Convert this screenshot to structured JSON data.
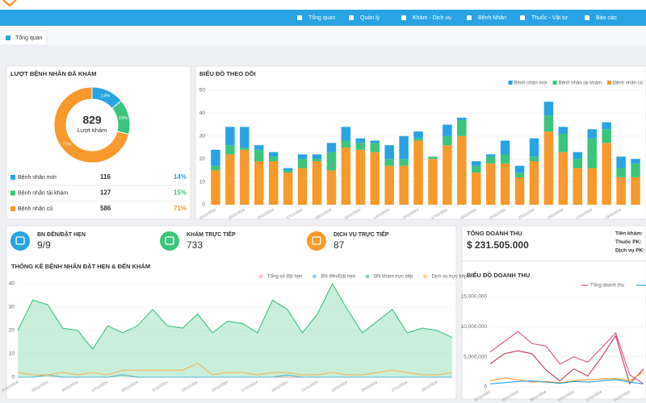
{
  "nav": {
    "items": [
      "Tổng quan",
      "Quản lý",
      "Khám - Dịch vụ",
      "Bệnh Nhân",
      "Thuốc - Vật tư",
      "Báo cáo"
    ]
  },
  "tab": "Tổng quan",
  "visits": {
    "type": "pie",
    "title": "LƯỢT BỆNH NHÂN ĐÃ KHÁM",
    "total": 829,
    "total_label": "Lượt khám",
    "categories": [
      "Bệnh nhân mới",
      "Bệnh nhân tái khám",
      "Bệnh nhân cũ"
    ],
    "colors": [
      "#29a3e3",
      "#3cc47c",
      "#f7992c"
    ],
    "values": [
      14,
      15,
      71
    ],
    "value_labels": [
      "14%",
      "15%",
      "71%"
    ],
    "counts": [
      116,
      127,
      586
    ]
  },
  "tracking": {
    "type": "bar",
    "stacked": true,
    "title": "BIỂU ĐỒ THEO DÕI",
    "categories": [
      "01/11/2024",
      null,
      "03/11/2024",
      null,
      "05/11/2024",
      null,
      "07/11/2024",
      null,
      "09/11/2024",
      null,
      "11/11/2024",
      null,
      "13/11/2024",
      null,
      "15/11/2024",
      null,
      "17/11/2024",
      null,
      "19/11/2024",
      null,
      "21/11/2024",
      null,
      "23/11/2024",
      null,
      "25/11/2024",
      null,
      "27/11/2024",
      null,
      "29/11/2024",
      null
    ],
    "series": [
      {
        "name": "Bệnh nhân mới",
        "color": "#29a3e3",
        "values": [
          7,
          8,
          9,
          2,
          2,
          1,
          2,
          2,
          4,
          6,
          2,
          1,
          6,
          10,
          3,
          0,
          5,
          1,
          2,
          1,
          6,
          3,
          8,
          6,
          3,
          3,
          4,
          3,
          5,
          2
        ]
      },
      {
        "name": "Bệnh nhân tái khám",
        "color": "#3cc47c",
        "values": [
          2,
          4,
          1,
          5,
          2,
          1,
          4,
          1,
          8,
          3,
          3,
          4,
          3,
          3,
          1,
          1,
          4,
          7,
          3,
          3,
          4,
          2,
          2,
          7,
          8,
          4,
          13,
          6,
          4,
          6
        ]
      },
      {
        "name": "Bệnh nhân cũ",
        "color": "#f7992c",
        "values": [
          15,
          22,
          24,
          19,
          19,
          14,
          16,
          19,
          15,
          25,
          24,
          23,
          17,
          17,
          28,
          20,
          26,
          30,
          14,
          18,
          18,
          12,
          19,
          32,
          23,
          16,
          16,
          27,
          12,
          12
        ]
      }
    ],
    "ylim": [
      0,
      50
    ],
    "yticks": [
      0,
      10,
      20,
      30,
      40,
      50
    ],
    "grid": true,
    "legend": "top-right"
  },
  "stats": [
    {
      "label": "BN ĐẾN/ĐẶT HẸN",
      "value": "9/9",
      "color": "#29a3e3"
    },
    {
      "label": "KHÁM TRỰC TIẾP",
      "value": 733,
      "color": "#3cc47c"
    },
    {
      "label": "DỊCH VỤ TRỰC TIẾP",
      "value": 87,
      "color": "#f7992c"
    }
  ],
  "appointments": {
    "type": "line",
    "title": "THỐNG KÊ BỆNH NHÂN ĐẶT HẸN & ĐẾN KHÁM",
    "categories": [
      "01/11/2024",
      null,
      "03/11/2024",
      null,
      "05/11/2024",
      null,
      "07/11/2024",
      null,
      "09/11/2024",
      null,
      "11/11/2024",
      null,
      "13/11/2024",
      null,
      "15/11/2024",
      null,
      "17/11/2024",
      null,
      "19/11/2024",
      null,
      "21/11/2024",
      null,
      "23/11/2024",
      null,
      "25/11/2024",
      null,
      "27/11/2024",
      null,
      "29/11/2024",
      null
    ],
    "series": [
      {
        "name": "Tổng số đặt hẹn",
        "color": "#f4a3b4",
        "values": [
          0,
          0,
          1,
          0,
          0,
          0,
          0,
          1,
          0,
          0,
          0,
          0,
          0,
          0,
          0,
          0,
          0,
          0,
          0,
          0,
          0,
          0,
          0,
          0,
          0,
          0,
          0,
          0,
          0,
          0
        ]
      },
      {
        "name": "BN đến/Đặt hẹn",
        "color": "#5bb8e6",
        "values": [
          0,
          0,
          1,
          0,
          0,
          0,
          0,
          1,
          0,
          0,
          0,
          0,
          0,
          0,
          0,
          0,
          0,
          0,
          1,
          0,
          0,
          0,
          0,
          0,
          0,
          0,
          0,
          0,
          0,
          0
        ]
      },
      {
        "name": "BN khám trực tiếp",
        "color": "#3cc47c",
        "area": true,
        "values": [
          20,
          33,
          31,
          21,
          20,
          12,
          22,
          19,
          22,
          29,
          22,
          21,
          27,
          19,
          24,
          23,
          19,
          33,
          29,
          19,
          27,
          40,
          29,
          19,
          24,
          29,
          19,
          21,
          20,
          17
        ]
      },
      {
        "name": "Dịch vụ trực tiếp",
        "color": "#f7b55a",
        "values": [
          2,
          1,
          1,
          2,
          1,
          2,
          1,
          3,
          3,
          3,
          3,
          3,
          6,
          1,
          2,
          2,
          1,
          2,
          2,
          1,
          1,
          2,
          1,
          1,
          2,
          3,
          2,
          1,
          1,
          2
        ]
      }
    ],
    "ylim": [
      0,
      40
    ],
    "yticks": [
      0,
      10,
      20,
      30,
      40
    ],
    "grid": true
  },
  "revenue": {
    "title": "TỔNG DOANH THU",
    "total": "$ 231.505.000",
    "breakdown": [
      "Tiền khám:",
      "Thuốc PK:",
      "Dịch vụ PK:"
    ],
    "chart": {
      "type": "line",
      "title": "BIỂU ĐỒ DOANH THU",
      "categories": [
        "01/11/2024",
        null,
        "05/11/2024",
        null,
        "09/11/2024",
        null,
        "13/11/2024",
        null,
        "17/11/2024",
        null,
        "21/11/2024",
        null
      ],
      "series": [
        {
          "name": "Tổng doanh thu",
          "color": "#e0508a",
          "values": [
            5800000,
            7500000,
            9200000,
            7200000,
            6800000,
            3800000,
            5000000,
            4100000,
            6500000,
            9000000,
            2000000,
            500000
          ]
        },
        {
          "color": "#c23a5a",
          "values": [
            3800000,
            5500000,
            6000000,
            5500000,
            2800000,
            1000000,
            3000000,
            1800000,
            5000000,
            8500000,
            500000,
            3000000
          ]
        },
        {
          "color": "#f7992c",
          "values": [
            1000000,
            1500000,
            1200000,
            800000,
            900000,
            700000,
            1000000,
            1200000,
            1300000,
            1400000,
            1000000,
            2500000
          ]
        },
        {
          "color": "#29a3e3",
          "values": [
            500000,
            700000,
            900000,
            1000000,
            800000,
            600000,
            900000,
            800000,
            1000000,
            1200000,
            800000,
            500000
          ]
        }
      ],
      "ylim": [
        0,
        15000000
      ],
      "yticks": [
        {
          "value": 0,
          "label": "0"
        },
        {
          "value": 5000000,
          "label": "5,000,000"
        },
        {
          "value": 10000000,
          "label": "10,000,000"
        },
        {
          "value": 15000000,
          "label": "15,000,000"
        }
      ],
      "grid": true
    }
  }
}
